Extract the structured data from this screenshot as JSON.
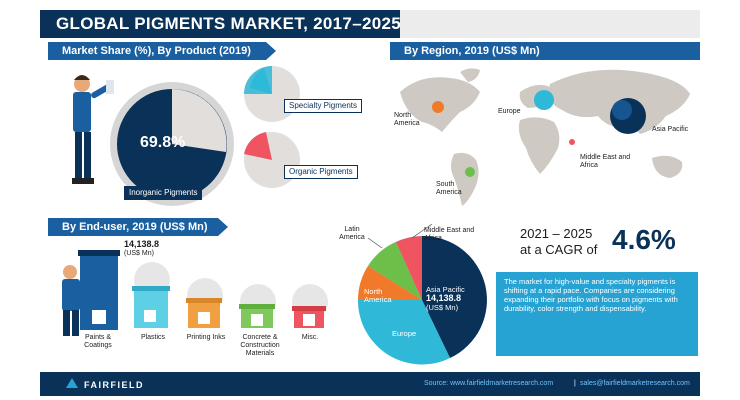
{
  "title": "GLOBAL PIGMENTS MARKET, 2017–2025",
  "sections": {
    "product": "Market Share (%), By Product (2019)",
    "region": "By Region, 2019 (US$ Mn)",
    "enduser": "By End-user, 2019 (US$ Mn)"
  },
  "product": {
    "inorganic_value": "69.8%",
    "inorganic_label": "Inorganic Pigments",
    "specialty_label": "Specialty Pigments",
    "organic_label": "Organic Pigments"
  },
  "region_map": {
    "north_america": "North America",
    "europe": "Europe",
    "asia_pacific": "Asia Pacific",
    "mea": "Middle East and Africa",
    "south_america": "South America"
  },
  "enduser": {
    "top_value": "14,138.8",
    "top_unit": "(US$ Mn)",
    "categories": [
      "Paints & Coatings",
      "Plastics",
      "Printing Inks",
      "Concrete & Construction Materials",
      "Misc."
    ],
    "colors": [
      "#1a5fa0",
      "#5ed0e6",
      "#f0a040",
      "#7ec85c",
      "#ee5560"
    ]
  },
  "region_pie": {
    "latin_america": "Latin America",
    "mea": "Middle East and Africa",
    "north_america": "North America",
    "europe": "Europe",
    "asia_pacific": "Asia Pacific",
    "asia_value": "14,138.8",
    "asia_unit": "(US$ Mn)"
  },
  "cagr": {
    "period": "2021 – 2025",
    "prefix": "at a CAGR of",
    "value": "4.6%",
    "text": "The market for high-value and specialty pigments is shifting at a rapid pace. Companies are considering expanding their portfolio with focus on pigments with durability, color strength and dispensability."
  },
  "footer": {
    "brand": "FAIRFIELD",
    "source": "Source: www.fairfieldmarketresearch.com",
    "email": "sales@fairfieldmarketresearch.com"
  }
}
